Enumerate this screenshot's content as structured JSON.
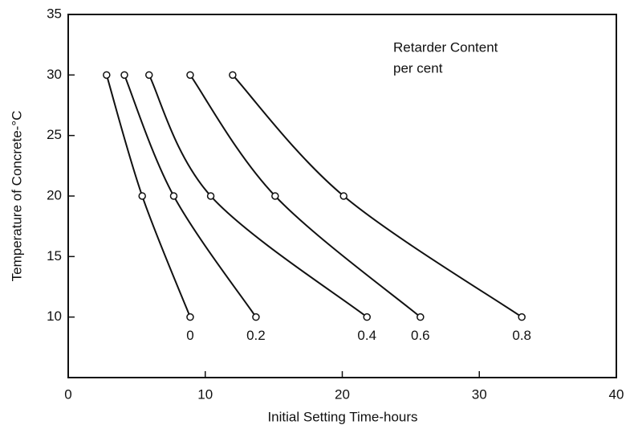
{
  "chart_data": {
    "type": "line",
    "xlabel": "Initial Setting Time-hours",
    "ylabel": "Temperature of Concrete-°C",
    "annotation": [
      "Retarder Content",
      "per cent"
    ],
    "xlim": [
      0,
      40
    ],
    "xticks": [
      0,
      10,
      20,
      30,
      40
    ],
    "ylim": [
      5,
      35
    ],
    "yticks": [
      10,
      15,
      20,
      25,
      30,
      35
    ],
    "series": [
      {
        "name": "0",
        "color": "#111111",
        "x": [
          2.8,
          5.4,
          8.9
        ],
        "values": [
          30,
          20,
          10
        ]
      },
      {
        "name": "0.2",
        "color": "#111111",
        "x": [
          4.1,
          7.7,
          13.7
        ],
        "values": [
          30,
          20,
          10
        ]
      },
      {
        "name": "0.4",
        "color": "#111111",
        "x": [
          5.9,
          10.4,
          21.8
        ],
        "values": [
          30,
          20,
          10
        ]
      },
      {
        "name": "0.6",
        "color": "#111111",
        "x": [
          8.9,
          15.1,
          25.7
        ],
        "values": [
          30,
          20,
          10
        ]
      },
      {
        "name": "0.8",
        "color": "#111111",
        "x": [
          12.0,
          20.1,
          33.1
        ],
        "values": [
          30,
          20,
          10
        ]
      }
    ]
  }
}
